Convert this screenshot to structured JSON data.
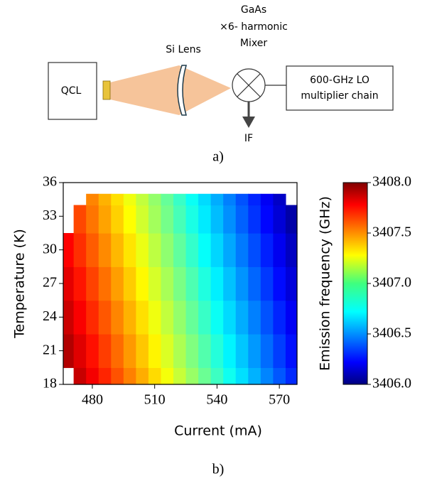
{
  "diagram": {
    "source_label": "QCL",
    "lens_label": "Si Lens",
    "mixer_label": [
      "GaAs",
      "×6- harmonic",
      "Mixer"
    ],
    "lo_label": [
      "600-GHz LO",
      "multiplier chain"
    ],
    "output_label": "IF",
    "caption": "a)"
  },
  "chart_data": {
    "type": "contour",
    "caption": "b)",
    "xlabel": "Current (mA)",
    "ylabel": "Temperature (K)",
    "colorbar_label": "Emission frequency (GHz)",
    "colormap": "jet",
    "xlim": [
      466,
      578.5
    ],
    "ylim": [
      18,
      36
    ],
    "xticks": [
      480,
      510,
      540,
      570
    ],
    "yticks": [
      18,
      21,
      24,
      27,
      30,
      33,
      36
    ],
    "clim": [
      3406,
      3408
    ],
    "cticks": [
      {
        "value": 3406,
        "label": "3406.0"
      },
      {
        "value": 3406.5,
        "label": "3406.5"
      },
      {
        "value": 3407,
        "label": "3407.0"
      },
      {
        "value": 3407.5,
        "label": "3407.5"
      },
      {
        "value": 3408,
        "label": "3408.0"
      }
    ],
    "x": [
      468,
      474,
      480,
      486,
      492,
      498,
      504,
      510,
      516,
      522,
      528,
      534,
      540,
      546,
      552,
      558,
      564,
      570,
      576
    ],
    "y": [
      18,
      21,
      24,
      27,
      30,
      33,
      35
    ],
    "z": [
      [
        null,
        3407.86,
        3407.77,
        3407.68,
        3407.59,
        3407.5,
        3407.41,
        3407.32,
        3407.23,
        3407.14,
        3407.05,
        3406.96,
        3406.87,
        3406.78,
        3406.69,
        3406.6,
        3406.51,
        3406.42,
        3406.33
      ],
      [
        3407.9,
        3407.81,
        3407.72,
        3407.63,
        3407.54,
        3407.45,
        3407.36,
        3407.27,
        3407.18,
        3407.09,
        3407.0,
        3406.91,
        3406.82,
        3406.73,
        3406.64,
        3406.55,
        3406.46,
        3406.37,
        3406.28
      ],
      [
        3407.85,
        3407.76,
        3407.67,
        3407.58,
        3407.49,
        3407.4,
        3407.31,
        3407.22,
        3407.13,
        3407.04,
        3406.95,
        3406.86,
        3406.77,
        3406.68,
        3406.59,
        3406.5,
        3406.41,
        3406.32,
        3406.23
      ],
      [
        3407.8,
        3407.71,
        3407.62,
        3407.53,
        3407.44,
        3407.35,
        3407.26,
        3407.17,
        3407.08,
        3406.99,
        3406.9,
        3406.81,
        3406.72,
        3406.63,
        3406.54,
        3406.45,
        3406.36,
        3406.27,
        3406.18
      ],
      [
        3407.75,
        3407.66,
        3407.57,
        3407.48,
        3407.39,
        3407.3,
        3407.21,
        3407.12,
        3407.03,
        3406.94,
        3406.85,
        3406.76,
        3406.67,
        3406.58,
        3406.49,
        3406.4,
        3406.31,
        3406.22,
        3406.13
      ],
      [
        null,
        3407.61,
        3407.52,
        3407.43,
        3407.34,
        3407.25,
        3407.16,
        3407.07,
        3406.98,
        3406.89,
        3406.8,
        3406.71,
        3406.62,
        3406.53,
        3406.44,
        3406.35,
        3406.26,
        3406.17,
        3406.08
      ],
      [
        null,
        null,
        3407.49,
        3407.4,
        3407.31,
        3407.22,
        3407.13,
        3407.04,
        3406.95,
        3406.86,
        3406.77,
        3406.68,
        3406.59,
        3406.5,
        3406.41,
        3406.32,
        3406.23,
        3406.14,
        null
      ]
    ]
  }
}
